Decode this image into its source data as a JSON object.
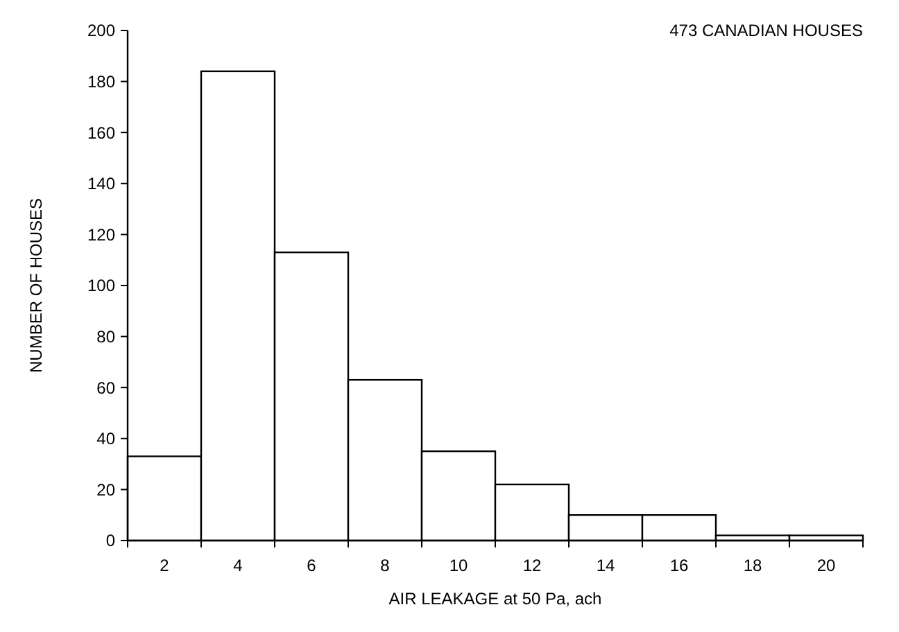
{
  "chart_data": {
    "type": "bar",
    "title": "473 CANADIAN HOUSES",
    "xlabel": "AIR LEAKAGE at 50 Pa, ach",
    "ylabel": "NUMBER OF HOUSES",
    "categories": [
      "2",
      "4",
      "6",
      "8",
      "10",
      "12",
      "14",
      "16",
      "18",
      "20"
    ],
    "values": [
      33,
      184,
      113,
      63,
      35,
      22,
      10,
      10,
      2,
      2
    ],
    "color": "#ffffff",
    "ylim": [
      0,
      200
    ],
    "yticks": [
      0,
      20,
      40,
      60,
      80,
      100,
      120,
      140,
      160,
      180,
      200
    ],
    "grid": false
  }
}
